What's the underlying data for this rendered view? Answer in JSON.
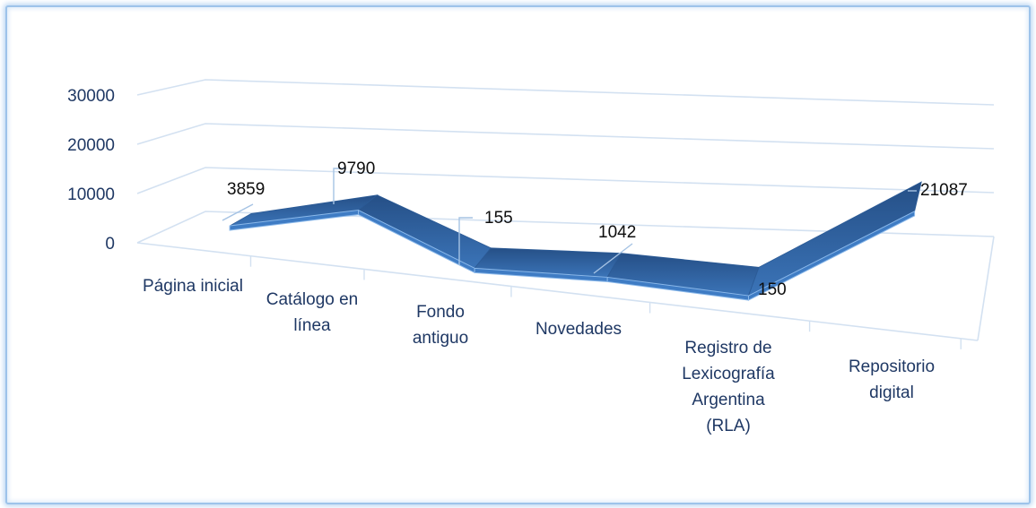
{
  "chart_data": {
    "type": "line",
    "style": "3d-ribbon",
    "categories": [
      "Página inicial",
      "Catálogo en línea",
      "Fondo antiguo",
      "Novedades",
      "Registro de Lexicografía Argentina (RLA)",
      "Repositorio digital"
    ],
    "category_lines": [
      [
        "Página inicial"
      ],
      [
        "Catálogo en",
        "línea"
      ],
      [
        "Fondo",
        "antiguo"
      ],
      [
        "Novedades"
      ],
      [
        "Registro de",
        "Lexicografía",
        "Argentina",
        "(RLA)"
      ],
      [
        "Repositorio",
        "digital"
      ]
    ],
    "series": [
      {
        "values": [
          3859,
          9790,
          155,
          1042,
          150,
          21087
        ]
      }
    ],
    "data_labels": [
      "3859",
      "9790",
      "155",
      "1042",
      "150",
      "21087"
    ],
    "y_ticks": [
      "0",
      "10000",
      "20000",
      "30000"
    ],
    "ylim": [
      0,
      30000
    ],
    "grid": true,
    "legend": "none",
    "colors": {
      "ribbon_top": "#2c5b96",
      "ribbon_front": "#3f7cc4",
      "ribbon_edge": "#8ab8ea",
      "grid": "#d3e1f1",
      "frame": "#9dc3ea",
      "label_text": "#1f3864",
      "data_label_text": "#0d0d0d"
    }
  }
}
